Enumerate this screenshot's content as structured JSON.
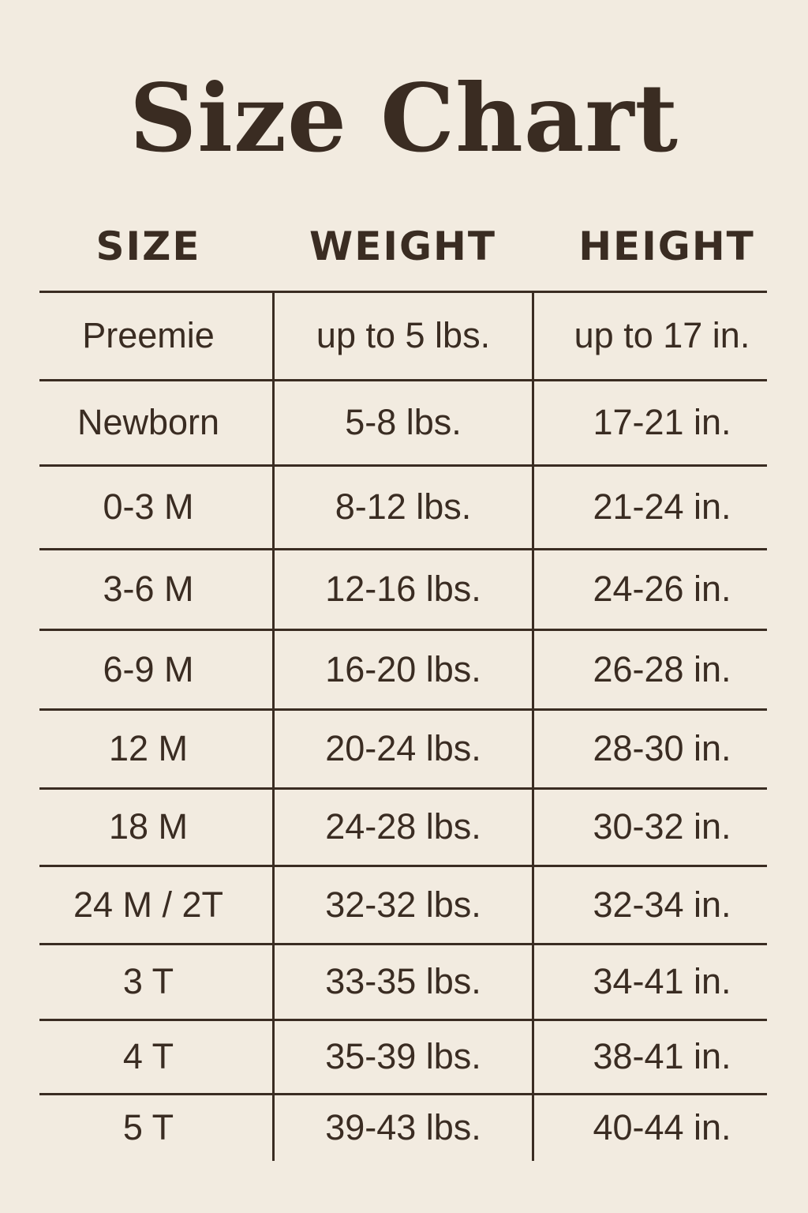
{
  "title": "Size Chart",
  "colors": {
    "background": "#f2ebe0",
    "text": "#3a2c22"
  },
  "table": {
    "headers": [
      "SIZE",
      "WEIGHT",
      "HEIGHT"
    ],
    "rows": [
      [
        "Preemie",
        "up to 5 lbs.",
        "up to 17 in."
      ],
      [
        "Newborn",
        "5-8 lbs.",
        "17-21 in."
      ],
      [
        "0-3 M",
        "8-12 lbs.",
        "21-24 in."
      ],
      [
        "3-6 M",
        "12-16 lbs.",
        "24-26 in."
      ],
      [
        "6-9 M",
        "16-20 lbs.",
        "26-28 in."
      ],
      [
        "12 M",
        "20-24 lbs.",
        "28-30 in."
      ],
      [
        "18 M",
        "24-28 lbs.",
        "30-32 in."
      ],
      [
        "24 M / 2T",
        "32-32 lbs.",
        "32-34 in."
      ],
      [
        "3 T",
        "33-35 lbs.",
        "34-41 in."
      ],
      [
        "4 T",
        "35-39 lbs.",
        "38-41 in."
      ],
      [
        "5 T",
        "39-43 lbs.",
        "40-44 in."
      ]
    ]
  }
}
